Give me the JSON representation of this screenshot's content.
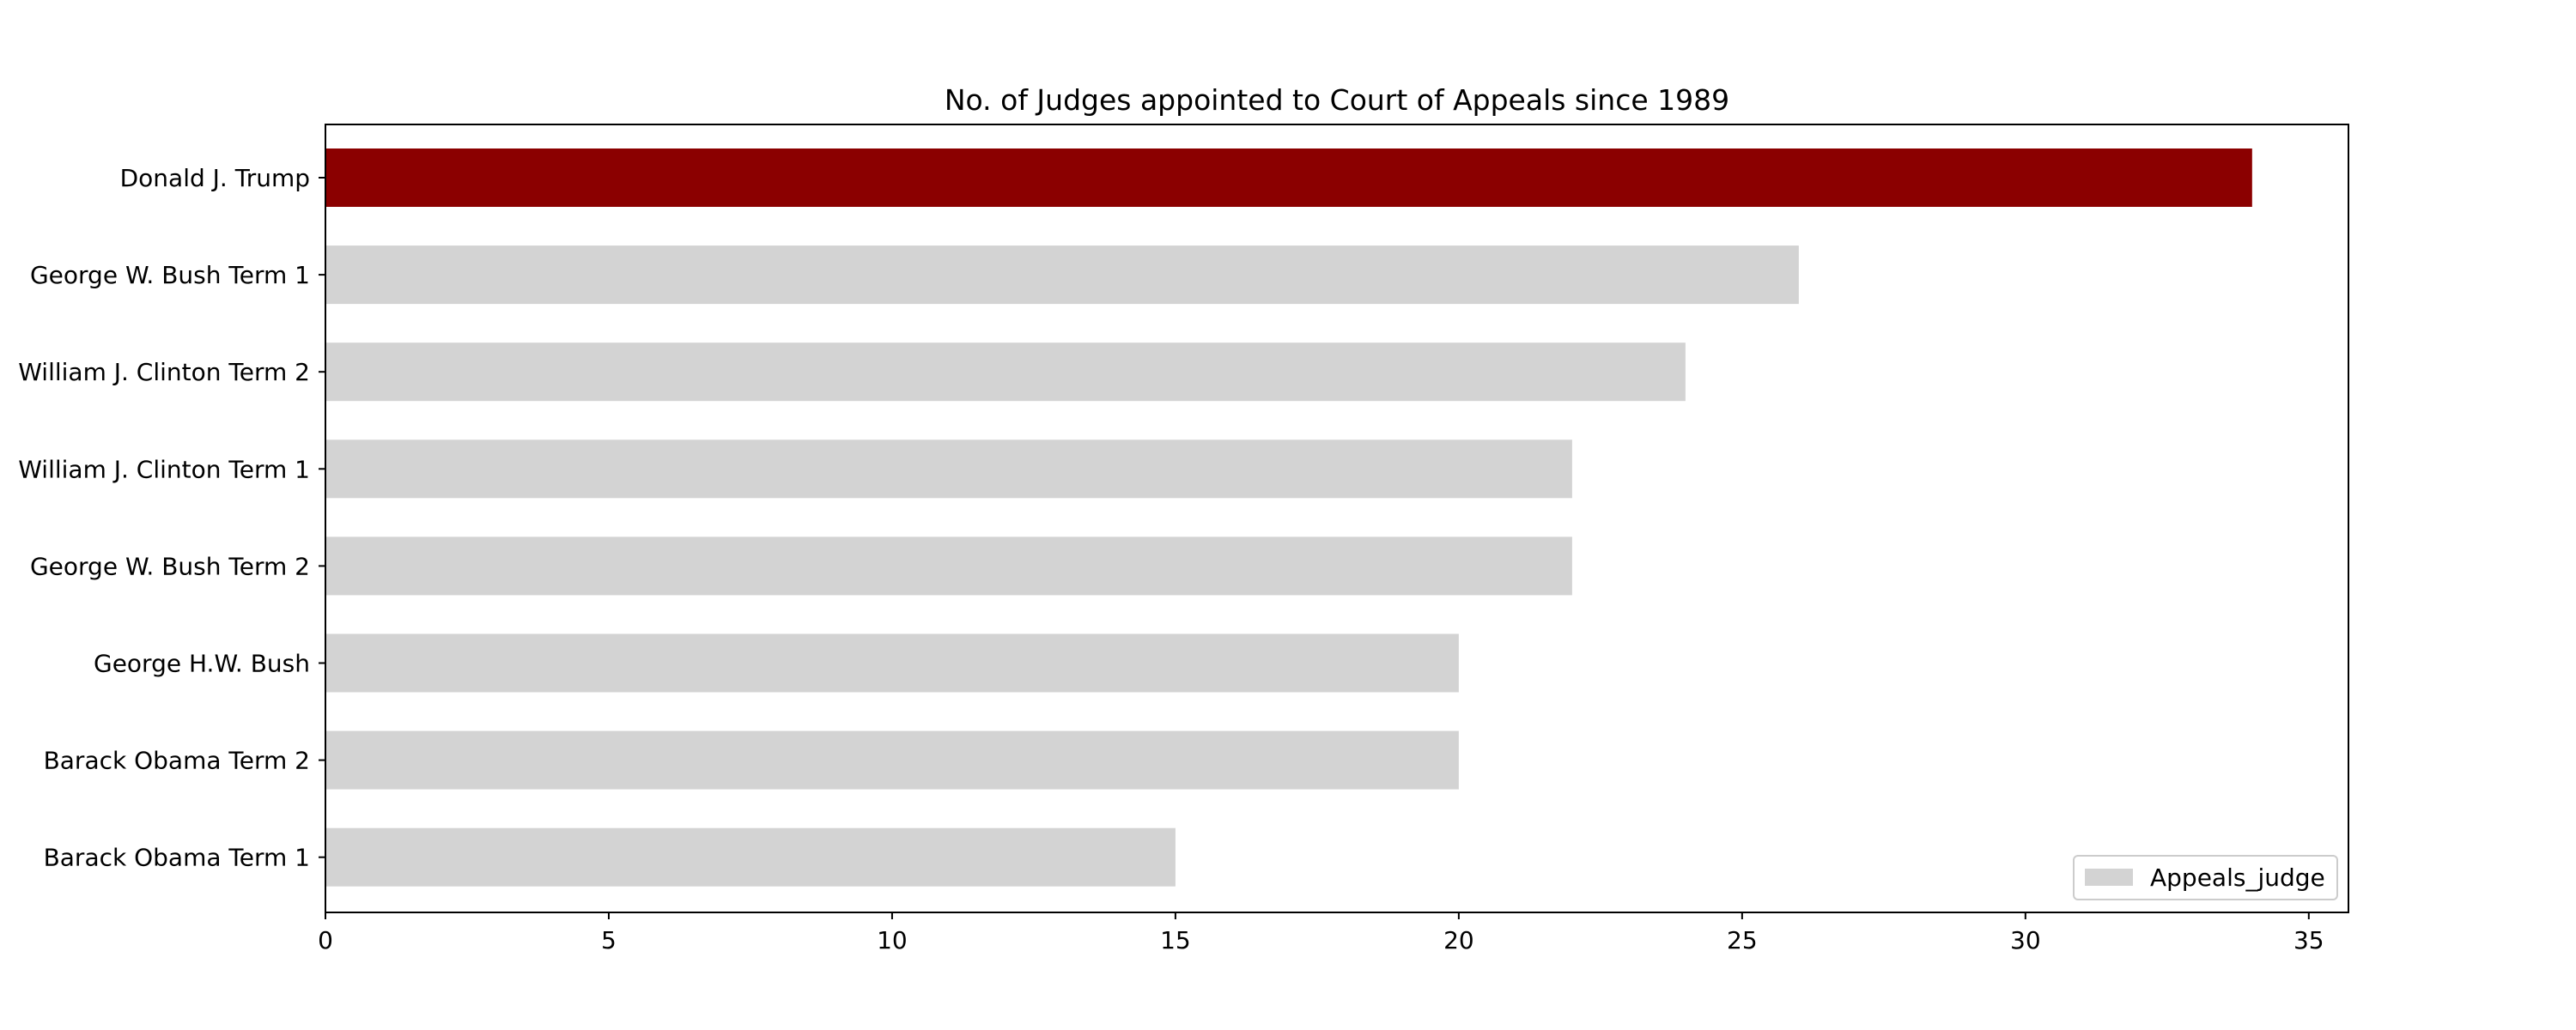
{
  "chart_data": {
    "type": "bar",
    "orientation": "horizontal",
    "title": "No. of Judges appointed to Court of Appeals since 1989",
    "xlabel": "",
    "ylabel": "",
    "categories": [
      "Donald J. Trump",
      "George W. Bush Term 1",
      "William J. Clinton Term 2",
      "William J. Clinton Term 1",
      "George W. Bush Term 2",
      "George H.W. Bush",
      "Barack Obama Term 2",
      "Barack Obama Term 1"
    ],
    "series": [
      {
        "name": "Appeals_judge",
        "values": [
          34,
          26,
          24,
          22,
          22,
          20,
          20,
          15
        ],
        "color": "#d3d3d3"
      }
    ],
    "highlight": {
      "category": "Donald J. Trump",
      "color": "#8b0000"
    },
    "xlim": [
      0,
      35.7
    ],
    "xticks": [
      0,
      5,
      10,
      15,
      20,
      25,
      30,
      35
    ],
    "grid": false,
    "legend": {
      "position": "bottom-right",
      "entries": [
        "Appeals_judge"
      ]
    }
  }
}
